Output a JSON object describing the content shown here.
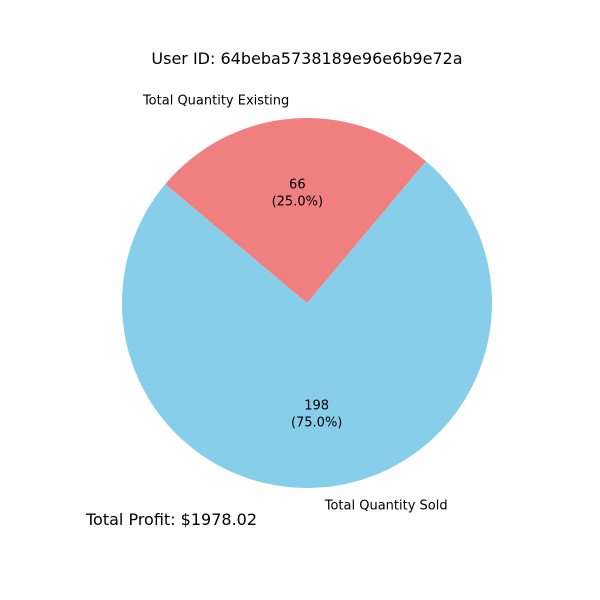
{
  "chart_data": {
    "type": "pie",
    "title": "User ID: 64beba5738189e96e6b9e72a",
    "slices": [
      {
        "label": "Total Quantity Sold",
        "value": 198,
        "pct_label": "(75.0%)",
        "color": "#87ceeb"
      },
      {
        "label": "Total Quantity Existing",
        "value": 66,
        "pct_label": "(25.0%)",
        "color": "#f08080"
      }
    ],
    "start_angle_deg": 140,
    "annotation": "Total Profit: $1978.02"
  }
}
